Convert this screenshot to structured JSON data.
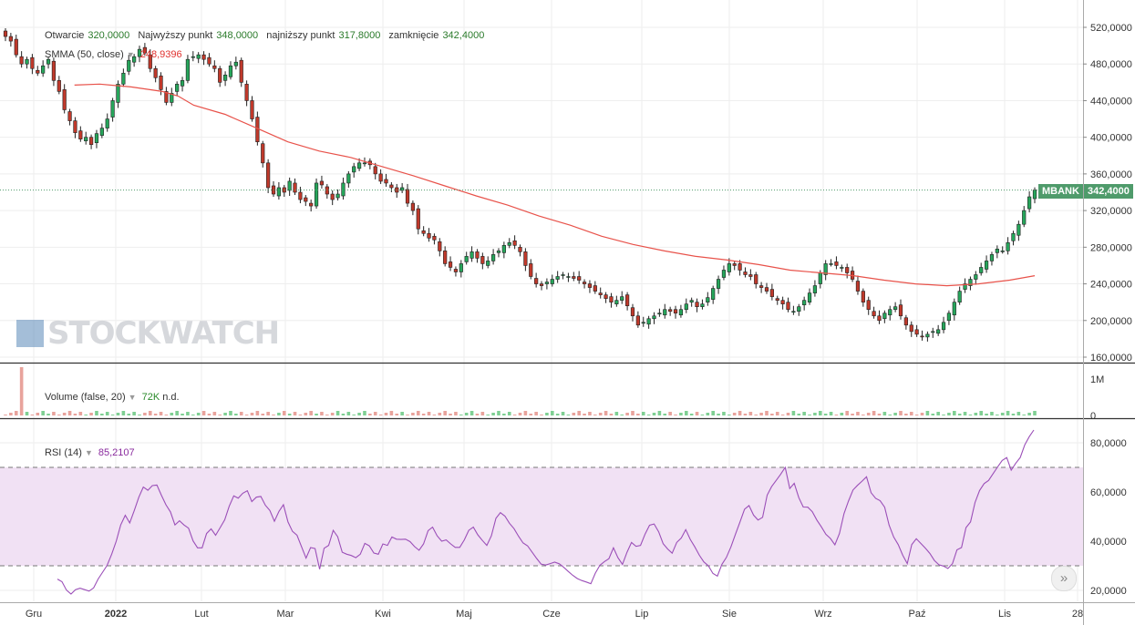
{
  "header": {
    "open_label": "Otwarcie",
    "open_value": "320,0000",
    "high_label": "Najwyższy punkt",
    "high_value": "348,0000",
    "low_label": "najniższy punkt",
    "low_value": "317,8000",
    "close_label": "zamknięcie",
    "close_value": "342,4000"
  },
  "smma": {
    "label": "SMMA (50, close)",
    "value": "248,9396"
  },
  "volume": {
    "label": "Volume (false, 20)",
    "value": "72K",
    "extra": "n.d."
  },
  "rsi": {
    "label": "RSI (14)",
    "value": "85,2107"
  },
  "badge": {
    "ticker": "MBANK",
    "price": "342,4000"
  },
  "watermark": {
    "text": "STOCKWATCH"
  },
  "colors": {
    "up": "#26a65b",
    "down": "#c0392b",
    "smma": "#e8524a",
    "rsi": "#9b4fb8",
    "band": "#f1e1f4",
    "badge_bg": "#4f9b6b"
  },
  "chart_data": {
    "type": "candlestick",
    "x_ticks": [
      "Gru",
      "2022",
      "Lut",
      "Mar",
      "Kwi",
      "Maj",
      "Cze",
      "Lip",
      "Sie",
      "Wrz",
      "Paź",
      "Lis",
      "28"
    ],
    "price_axis": {
      "ticks": [
        "520,0000",
        "480,0000",
        "440,0000",
        "400,0000",
        "360,0000",
        "320,0000",
        "280,0000",
        "240,0000",
        "200,0000",
        "160,0000"
      ],
      "ylim": [
        152,
        532
      ]
    },
    "volume_axis": {
      "ticks": [
        "1M",
        "0"
      ]
    },
    "rsi_axis": {
      "ticks": [
        "80,0000",
        "60,0000",
        "40,0000",
        "20,0000"
      ],
      "ylim": [
        17,
        90
      ],
      "band": [
        30,
        70
      ]
    },
    "last_price": 342.4,
    "close_series": [
      510,
      505,
      490,
      480,
      485,
      475,
      470,
      478,
      485,
      462,
      450,
      430,
      418,
      405,
      398,
      400,
      392,
      404,
      410,
      420,
      440,
      458,
      470,
      484,
      488,
      496,
      492,
      475,
      465,
      452,
      438,
      448,
      458,
      462,
      485,
      488,
      490,
      485,
      480,
      475,
      460,
      468,
      478,
      482,
      460,
      440,
      420,
      395,
      372,
      345,
      338,
      345,
      340,
      352,
      340,
      332,
      330,
      325,
      350,
      348,
      338,
      332,
      338,
      350,
      360,
      368,
      372,
      372,
      370,
      360,
      352,
      350,
      345,
      340,
      345,
      328,
      320,
      300,
      295,
      290,
      288,
      276,
      262,
      258,
      253,
      262,
      270,
      275,
      268,
      262,
      265,
      272,
      276,
      282,
      285,
      282,
      275,
      260,
      248,
      240,
      238,
      242,
      245,
      248,
      250,
      248,
      246,
      244,
      240,
      236,
      232,
      228,
      224,
      220,
      222,
      226,
      216,
      205,
      195,
      198,
      202,
      205,
      208,
      212,
      210,
      208,
      212,
      218,
      222,
      215,
      218,
      225,
      235,
      245,
      255,
      262,
      260,
      255,
      250,
      248,
      240,
      236,
      232,
      226,
      222,
      218,
      212,
      210,
      215,
      222,
      230,
      238,
      252,
      262,
      262,
      260,
      258,
      252,
      245,
      232,
      220,
      212,
      205,
      200,
      208,
      212,
      215,
      205,
      195,
      188,
      185,
      182,
      185,
      188,
      190,
      198,
      208,
      220,
      232,
      240,
      245,
      250,
      258,
      265,
      272,
      278,
      276,
      285,
      295,
      305,
      320,
      335,
      342.4
    ],
    "smma_series": [
      [
        22,
        457
      ],
      [
        30,
        458
      ],
      [
        40,
        455
      ],
      [
        50,
        450
      ],
      [
        55,
        445
      ],
      [
        60,
        435
      ],
      [
        70,
        425
      ],
      [
        80,
        410
      ],
      [
        90,
        395
      ],
      [
        100,
        385
      ],
      [
        110,
        378
      ],
      [
        120,
        368
      ],
      [
        130,
        358
      ],
      [
        140,
        347
      ],
      [
        150,
        336
      ],
      [
        160,
        326
      ],
      [
        170,
        314
      ],
      [
        180,
        304
      ],
      [
        190,
        292
      ],
      [
        200,
        283
      ],
      [
        210,
        276
      ],
      [
        220,
        270
      ],
      [
        230,
        266
      ],
      [
        240,
        261
      ],
      [
        250,
        255
      ],
      [
        260,
        252
      ],
      [
        270,
        249
      ],
      [
        280,
        244
      ],
      [
        290,
        240
      ],
      [
        300,
        238
      ],
      [
        310,
        240
      ],
      [
        320,
        244
      ],
      [
        328,
        248.9
      ]
    ],
    "rsi_series": [
      [
        0,
        24.6
      ],
      [
        1,
        23.5
      ],
      [
        2,
        20.1
      ],
      [
        3,
        18.5
      ],
      [
        4,
        20.3
      ],
      [
        5,
        20.9
      ],
      [
        6,
        20.3
      ],
      [
        7,
        19.7
      ],
      [
        8,
        21.0
      ],
      [
        9,
        24.6
      ],
      [
        10,
        27.4
      ],
      [
        11,
        30.2
      ],
      [
        12,
        34.7
      ],
      [
        13,
        40.0
      ],
      [
        14,
        46.6
      ],
      [
        15,
        50.5
      ],
      [
        16,
        47.4
      ],
      [
        17,
        52.5
      ],
      [
        18,
        57.9
      ],
      [
        19,
        62.0
      ],
      [
        20,
        60.7
      ],
      [
        21,
        62.6
      ],
      [
        22,
        62.8
      ],
      [
        23,
        58.7
      ],
      [
        24,
        54.8
      ],
      [
        25,
        51.9
      ],
      [
        26,
        46.6
      ],
      [
        27,
        48.3
      ],
      [
        28,
        46.6
      ],
      [
        29,
        45.3
      ],
      [
        30,
        40.1
      ],
      [
        31,
        37.3
      ],
      [
        32,
        37.3
      ],
      [
        33,
        43.1
      ],
      [
        34,
        45.0
      ],
      [
        35,
        42.4
      ],
      [
        36,
        45.5
      ],
      [
        37,
        48.7
      ],
      [
        38,
        54.2
      ],
      [
        39,
        58.4
      ],
      [
        40,
        57.5
      ],
      [
        41,
        59.5
      ],
      [
        42,
        60.5
      ],
      [
        43,
        56.1
      ],
      [
        44,
        57.9
      ],
      [
        45,
        58.2
      ],
      [
        46,
        54.6
      ],
      [
        47,
        52.5
      ],
      [
        48,
        48.1
      ],
      [
        49,
        52.1
      ],
      [
        50,
        54.8
      ],
      [
        51,
        47.8
      ],
      [
        52,
        44.0
      ],
      [
        53,
        42.4
      ],
      [
        54,
        37.7
      ],
      [
        55,
        33.1
      ],
      [
        56,
        37.4
      ],
      [
        57,
        37.0
      ],
      [
        58,
        28.6
      ],
      [
        59,
        37.1
      ],
      [
        60,
        38.3
      ],
      [
        61,
        44.4
      ],
      [
        62,
        41.8
      ],
      [
        63,
        35.5
      ],
      [
        64,
        34.7
      ],
      [
        65,
        34.2
      ],
      [
        66,
        33.3
      ],
      [
        67,
        34.7
      ],
      [
        68,
        39.1
      ],
      [
        69,
        38.1
      ],
      [
        70,
        35.2
      ],
      [
        71,
        34.7
      ],
      [
        72,
        38.9
      ],
      [
        73,
        38.3
      ],
      [
        74,
        41.7
      ],
      [
        75,
        40.8
      ],
      [
        76,
        40.7
      ],
      [
        77,
        40.8
      ],
      [
        78,
        39.8
      ],
      [
        79,
        37.8
      ],
      [
        80,
        36.3
      ],
      [
        81,
        38.9
      ],
      [
        82,
        44.3
      ],
      [
        83,
        45.7
      ],
      [
        84,
        42.2
      ],
      [
        85,
        40.0
      ],
      [
        86,
        40.5
      ],
      [
        87,
        38.9
      ],
      [
        88,
        37.5
      ],
      [
        89,
        37.5
      ],
      [
        90,
        40.5
      ],
      [
        91,
        44.4
      ],
      [
        92,
        45.7
      ],
      [
        93,
        42.6
      ],
      [
        94,
        40.3
      ],
      [
        95,
        38.3
      ],
      [
        96,
        42.2
      ],
      [
        97,
        49.3
      ],
      [
        98,
        51.6
      ],
      [
        99,
        50.2
      ],
      [
        100,
        47.3
      ],
      [
        101,
        45.1
      ],
      [
        102,
        42.0
      ],
      [
        103,
        39.3
      ],
      [
        104,
        38.1
      ],
      [
        105,
        35.6
      ],
      [
        106,
        33.0
      ],
      [
        107,
        30.7
      ],
      [
        108,
        30.3
      ],
      [
        109,
        30.9
      ],
      [
        110,
        31.5
      ],
      [
        111,
        30.8
      ],
      [
        112,
        29.4
      ],
      [
        113,
        27.7
      ],
      [
        114,
        26.1
      ],
      [
        115,
        24.8
      ],
      [
        116,
        24.0
      ],
      [
        117,
        23.4
      ],
      [
        118,
        22.7
      ],
      [
        119,
        27.0
      ],
      [
        120,
        30.2
      ],
      [
        121,
        31.7
      ],
      [
        122,
        32.9
      ],
      [
        123,
        37.3
      ],
      [
        124,
        33.3
      ],
      [
        125,
        30.6
      ],
      [
        126,
        35.5
      ],
      [
        127,
        39.5
      ],
      [
        128,
        37.9
      ],
      [
        129,
        38.3
      ],
      [
        130,
        42.9
      ],
      [
        131,
        46.5
      ],
      [
        132,
        47.0
      ],
      [
        133,
        43.8
      ],
      [
        134,
        39.0
      ],
      [
        135,
        36.8
      ],
      [
        136,
        35.1
      ],
      [
        137,
        39.5
      ],
      [
        138,
        41.3
      ],
      [
        139,
        44.7
      ],
      [
        140,
        40.7
      ],
      [
        141,
        37.7
      ],
      [
        142,
        34.3
      ],
      [
        143,
        31.6
      ],
      [
        144,
        30.0
      ],
      [
        145,
        26.9
      ],
      [
        146,
        25.8
      ],
      [
        147,
        30.6
      ],
      [
        148,
        33.4
      ],
      [
        149,
        37.7
      ],
      [
        150,
        42.9
      ],
      [
        151,
        47.8
      ],
      [
        152,
        53.0
      ],
      [
        153,
        54.5
      ],
      [
        154,
        50.6
      ],
      [
        155,
        48.6
      ],
      [
        156,
        49.7
      ],
      [
        157,
        58.7
      ],
      [
        158,
        62.2
      ],
      [
        159,
        64.7
      ],
      [
        160,
        67.2
      ],
      [
        161,
        70.0
      ],
      [
        162,
        61.4
      ],
      [
        163,
        63.5
      ],
      [
        164,
        57.7
      ],
      [
        165,
        53.9
      ],
      [
        166,
        53.8
      ],
      [
        167,
        52.0
      ],
      [
        168,
        48.6
      ],
      [
        169,
        45.8
      ],
      [
        170,
        42.8
      ],
      [
        171,
        41.1
      ],
      [
        172,
        38.5
      ],
      [
        173,
        43.1
      ],
      [
        174,
        51.2
      ],
      [
        175,
        56.3
      ],
      [
        176,
        60.8
      ],
      [
        177,
        62.7
      ],
      [
        178,
        64.4
      ],
      [
        179,
        66.2
      ],
      [
        180,
        59.7
      ],
      [
        181,
        57.4
      ],
      [
        182,
        56.5
      ],
      [
        183,
        53.8
      ],
      [
        184,
        46.5
      ],
      [
        185,
        41.7
      ],
      [
        186,
        38.6
      ],
      [
        187,
        34.3
      ],
      [
        188,
        30.9
      ],
      [
        189,
        38.6
      ],
      [
        190,
        41.0
      ],
      [
        191,
        39.1
      ],
      [
        192,
        37.2
      ],
      [
        193,
        35.0
      ],
      [
        194,
        32.2
      ],
      [
        195,
        30.4
      ],
      [
        196,
        29.9
      ],
      [
        197,
        28.9
      ],
      [
        198,
        30.9
      ],
      [
        199,
        36.5
      ],
      [
        200,
        37.4
      ],
      [
        201,
        45.5
      ],
      [
        202,
        47.8
      ],
      [
        203,
        55.7
      ],
      [
        204,
        60.6
      ],
      [
        205,
        63.4
      ],
      [
        206,
        64.7
      ],
      [
        207,
        67.5
      ],
      [
        208,
        70.2
      ],
      [
        209,
        72.8
      ],
      [
        210,
        74.0
      ],
      [
        211,
        68.9
      ],
      [
        212,
        71.7
      ],
      [
        213,
        74.0
      ],
      [
        214,
        79.2
      ],
      [
        215,
        82.5
      ],
      [
        216,
        85.2
      ]
    ]
  }
}
